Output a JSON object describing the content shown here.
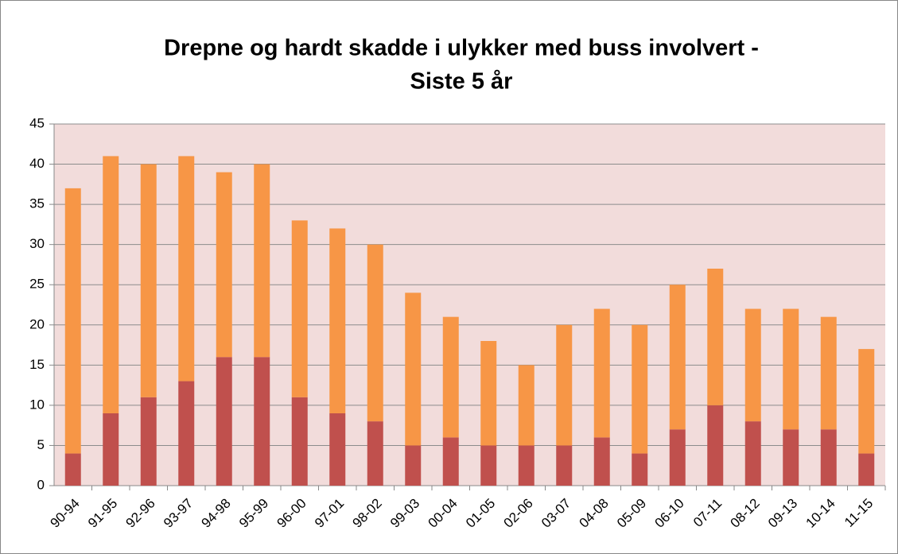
{
  "chart_data": {
    "type": "stacked-bar",
    "title": [
      "Drepne og hardt skadde i ulykker med buss involvert -",
      "Siste 5 år"
    ],
    "categories": [
      "90-94",
      "91-95",
      "92-96",
      "93-97",
      "94-98",
      "95-99",
      "96-00",
      "97-01",
      "98-02",
      "99-03",
      "00-04",
      "01-05",
      "02-06",
      "03-07",
      "04-08",
      "05-09",
      "06-10",
      "07-11",
      "08-12",
      "09-13",
      "10-14",
      "11-15"
    ],
    "series": [
      {
        "color": "#c0504d",
        "values": [
          4,
          9,
          11,
          13,
          16,
          16,
          11,
          9,
          8,
          5,
          6,
          5,
          5,
          5,
          6,
          4,
          7,
          10,
          8,
          7,
          7,
          4
        ]
      },
      {
        "color": "#f79646",
        "values": [
          33,
          32,
          29,
          28,
          23,
          24,
          22,
          23,
          22,
          19,
          15,
          13,
          10,
          15,
          16,
          16,
          18,
          17,
          14,
          15,
          14,
          13
        ]
      }
    ],
    "ylim": [
      0,
      45
    ],
    "yticks": [
      0,
      5,
      10,
      15,
      20,
      25,
      30,
      35,
      40,
      45
    ],
    "grid": true
  }
}
